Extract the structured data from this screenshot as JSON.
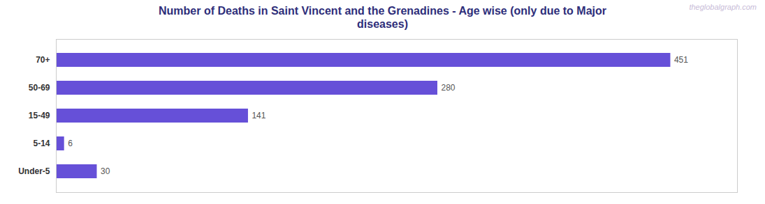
{
  "chart_data": {
    "type": "bar",
    "orientation": "horizontal",
    "title": "Number of Deaths in Saint Vincent and the Grenadines - Age wise (only due to Major\ndiseases)",
    "categories": [
      "Under-5",
      "5-14",
      "15-49",
      "50-69",
      "70+"
    ],
    "values": [
      30,
      6,
      141,
      280,
      451
    ],
    "color": "#6650d8",
    "xlim": [
      0,
      500
    ],
    "grid": false,
    "data_labels": true,
    "tick_labels": "y",
    "annotations": [
      "theglobalgraph.com"
    ]
  }
}
